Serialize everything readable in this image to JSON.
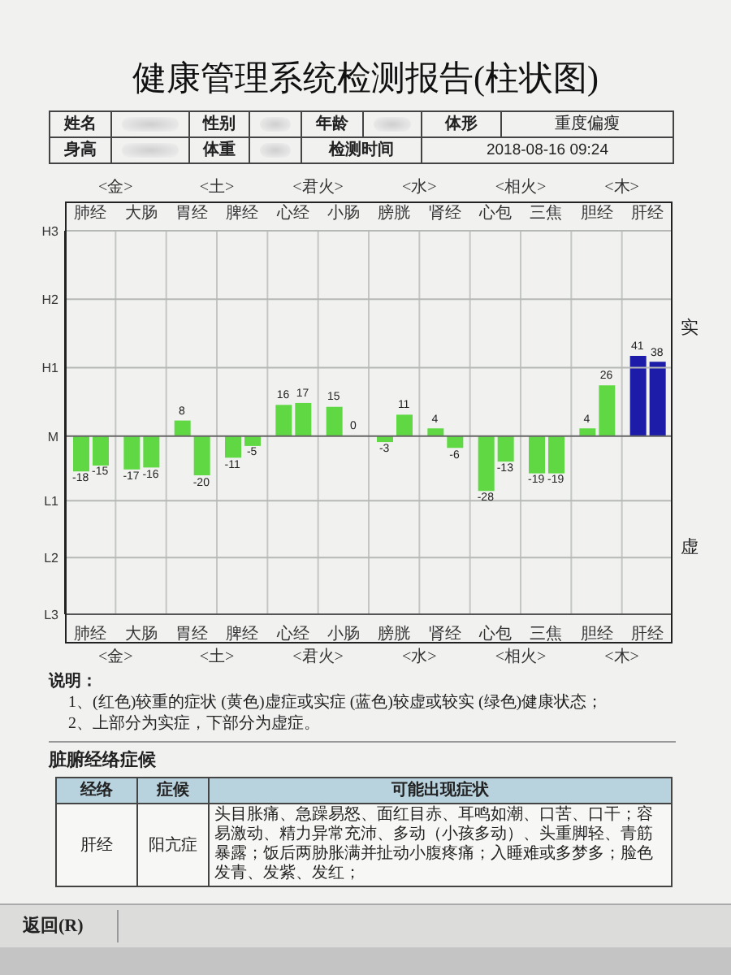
{
  "chart_data": {
    "type": "bar",
    "title": "健康管理系统检测报告(柱状图)",
    "categories": [
      "肺经",
      "大肠",
      "胃经",
      "脾经",
      "心经",
      "小肠",
      "膀胱",
      "肾经",
      "心包",
      "三焦",
      "胆经",
      "肝经"
    ],
    "series": [
      {
        "colors": [
          "#5fd843",
          "#5fd843",
          "#5fd843",
          "#5fd843",
          "#5fd843",
          "#5fd843",
          "#5fd843",
          "#5fd843",
          "#5fd843",
          "#5fd843",
          "#5fd843",
          "#1c1ca8"
        ],
        "values": [
          -18,
          -17,
          8,
          -11,
          16,
          15,
          -3,
          4,
          -28,
          -19,
          4,
          41
        ]
      },
      {
        "colors": [
          "#5fd843",
          "#5fd843",
          "#5fd843",
          "#5fd843",
          "#5fd843",
          "#5fd843",
          "#5fd843",
          "#5fd843",
          "#5fd843",
          "#5fd843",
          "#5fd843",
          "#1c1ca8"
        ],
        "values": [
          -15,
          -16,
          -20,
          -5,
          17,
          0,
          11,
          -6,
          -13,
          -19,
          26,
          38
        ]
      }
    ],
    "ylim": [
      -91,
      105
    ],
    "ref_lines": [
      {
        "axis": "y",
        "value": 105,
        "label": "H3",
        "color": "#b5b8b5"
      },
      {
        "axis": "y",
        "value": 70,
        "label": "H2",
        "color": "#b5b8b5"
      },
      {
        "axis": "y",
        "value": 35,
        "label": "H1",
        "color": "#b5b8b5"
      },
      {
        "axis": "y",
        "value": 0,
        "label": "M",
        "color": "#666666"
      },
      {
        "axis": "y",
        "value": -33,
        "label": "L1",
        "color": "#b5b8b5"
      },
      {
        "axis": "y",
        "value": -62,
        "label": "L2",
        "color": "#b5b8b5"
      },
      {
        "axis": "y",
        "value": -91,
        "label": "L3",
        "color": "#555555"
      }
    ],
    "grid": "x",
    "data_labels": true,
    "annotations": [
      "姓名",
      "性别",
      "年龄",
      "体形",
      "重度偏瘦",
      "身高",
      "体重",
      "检测时间",
      "2018-08-16 09:24",
      "<金>",
      "<土>",
      "<君火>",
      "<水>",
      "<相火>",
      "<木>",
      "实",
      "虚",
      "说明：",
      "1、(红色)较重的症状 (黄色)虚症或实症 (蓝色)较虚或较实 (绿色)健康状态；",
      "2、上部分为实症，下部分为虚症。",
      "脏腑经络症候",
      "经络",
      "症候",
      "可能出现症状",
      "肝经",
      "阳亢症",
      "头目胀痛、急躁易怒、面红目赤、耳鸣如潮、口苦、口干；容易激动、精力异常充沛、多动（小孩多动）、头重脚轻、青筋暴露；饭后两胁胀满并扯动小腹疼痛；入睡难或多梦多；脸色发青、发紫、发红；",
      "返回(R)"
    ]
  }
}
